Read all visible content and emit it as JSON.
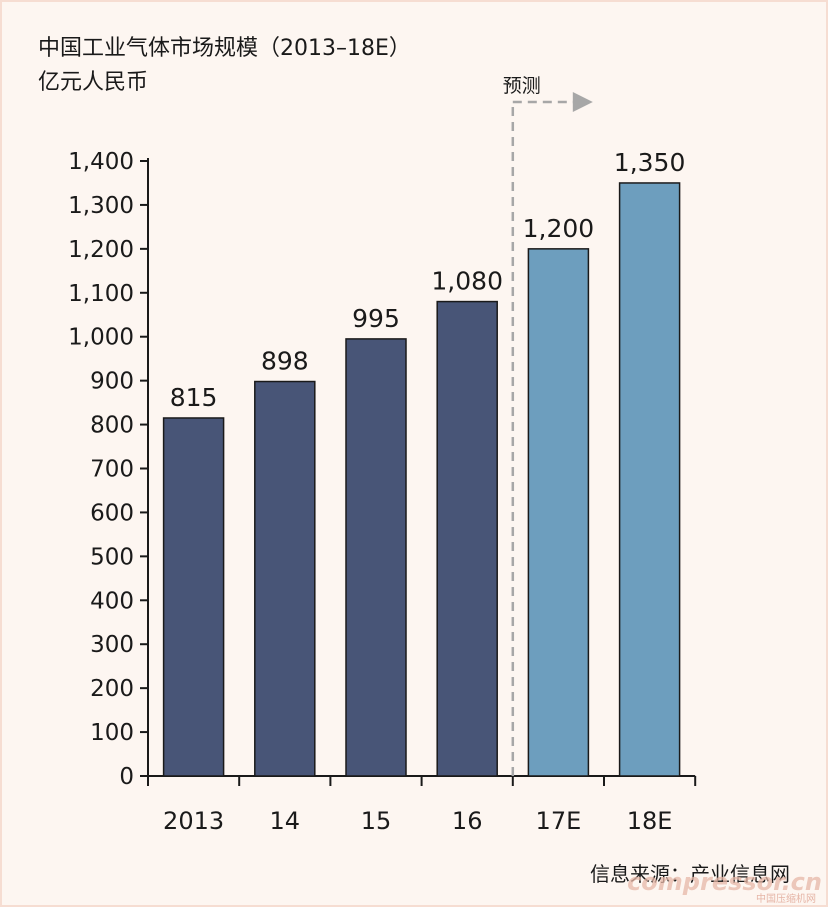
{
  "chart_data": {
    "type": "bar",
    "title": "中国工业气体市场规模（2013–18E）",
    "subtitle": "亿元人民币",
    "categories": [
      "2013",
      "14",
      "15",
      "16",
      "17E",
      "18E"
    ],
    "values": [
      815,
      898,
      995,
      1080,
      1200,
      1350
    ],
    "data_labels": [
      "815",
      "898",
      "995",
      "1,080",
      "1,200",
      "1,350"
    ],
    "forecast_from_index": 4,
    "forecast_label": "预测",
    "ylim": [
      0,
      1400
    ],
    "yticks": [
      0,
      100,
      200,
      300,
      400,
      500,
      600,
      700,
      800,
      900,
      1000,
      1100,
      1200,
      1300,
      1400
    ],
    "ytick_labels": [
      "0",
      "100",
      "200",
      "300",
      "400",
      "500",
      "600",
      "700",
      "800",
      "900",
      "1,000",
      "1,100",
      "1,200",
      "1,300",
      "1,400"
    ],
    "grid": false,
    "colors": {
      "actual": "#485577",
      "forecast": "#6d9ebe",
      "axis": "#1a1a1a",
      "forecast_divider": "#a7a7a7"
    }
  },
  "source": "信息来源：产业信息网",
  "watermark": "compressor.cn",
  "watermark_sub": "中国压缩机网"
}
